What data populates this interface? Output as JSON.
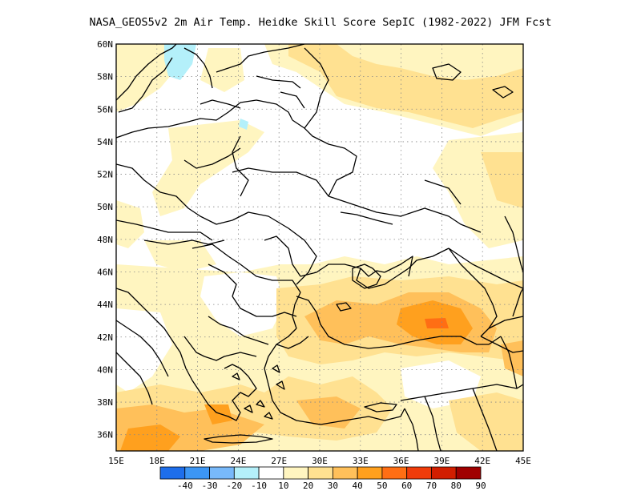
{
  "title": "NASA_GEOS5v2  2m Air Temp. Heidke Skill Score SepIC (1982-2022) JFM Fcst",
  "lat_labels": [
    "60N",
    "58N",
    "56N",
    "54N",
    "52N",
    "50N",
    "48N",
    "46N",
    "44N",
    "42N",
    "40N",
    "38N",
    "36N"
  ],
  "lon_labels": [
    "15E",
    "18E",
    "21E",
    "24E",
    "27E",
    "30E",
    "33E",
    "36E",
    "39E",
    "42E",
    "45E"
  ],
  "lat_range": [
    35,
    60
  ],
  "lon_range": [
    15,
    45
  ],
  "colorbar": {
    "labels": [
      "-40",
      "-30",
      "-20",
      "-10",
      "10",
      "20",
      "30",
      "40",
      "50",
      "60",
      "70",
      "80",
      "90"
    ],
    "colors": [
      "#1e6eeb",
      "#3c96f5",
      "#78b9fa",
      "#b4f0fa",
      "#ffffff",
      "#fff5c0",
      "#ffe191",
      "#ffc05a",
      "#ffa01e",
      "#ff6e14",
      "#f03c0a",
      "#d21e00",
      "#a00000"
    ]
  },
  "grid": "dotted"
}
